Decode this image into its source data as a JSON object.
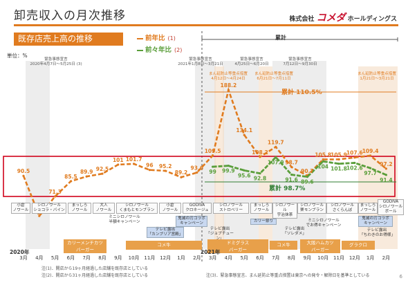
{
  "header": {
    "title": "卸売収入の月次推移",
    "company_prefix": "株式会社",
    "company_mark": "コメダ",
    "company_suffix": "ホールディングス"
  },
  "subtitle": "既存店売上高の推移",
  "legend": {
    "items": [
      {
        "label": "前年比",
        "footnote": "(1)",
        "color": "#e07b1f"
      },
      {
        "label": "前々年比",
        "footnote": "(2)",
        "color": "#5a9e3a"
      }
    ]
  },
  "unit": "単位：%",
  "annotations": {
    "emergency1_title": "緊急事態宣言",
    "emergency1_dates": "2020年4月7日～5月25日",
    "emergency1_note": "(3)",
    "emergency2_title": "緊急事態宣言",
    "emergency2_dates": "2021年1月8日～3月21日",
    "emergency3_title": "緊急事態宣言",
    "emergency3_dates": "4月25日～6月20日",
    "emergency4_title": "緊急事態宣言",
    "emergency4_dates": "7月12日～9月30日",
    "manbo1_title": "まん延防止等重点措置",
    "manbo1_dates": "4月12日～4月24日",
    "manbo2_title": "まん延防止等重点措置",
    "manbo2_dates": "6月21日～7月11日",
    "manbo3_title": "まん延防止等重点措置",
    "manbo3_dates": "1月21日～3月21日",
    "ruikei_label": "累計",
    "ruikei_yoy": "累計 110.5%",
    "ruikei_2y": "累計 98.7%"
  },
  "campaign_row1": [
    "小倉\nノワール",
    "シロノワール\nショコラ・バイン",
    "まっしろ\nノワール",
    "大人\nノワール",
    "シロノワール\nくまもとモンブラン",
    "小倉\nノワール",
    "GODIVA\nクロネージュ",
    "シロノワール\nストロベリー",
    "まっしろ\nノワール",
    "シロノワール\n宇治抹茶",
    "シロノワール\n栗モンブラン",
    "シロノワール\nさくらんぼ",
    "まっしろ\nノワール",
    "GODIVA\nシロノワール\nボール"
  ],
  "campaign_row2": [
    "ミニシロノワール\n半額キャンペーン",
    "テレビ露出\n「カンブリア宮殿」",
    "鬼滅の刃コラボ\nキャンペーン",
    "テレビ露出\n「ジョブチューン」",
    "カリー祭り",
    "ミニシロノワール\nでお得キャンペーン",
    "テレビ露出\n「ソレダメ」",
    "鬼滅の刃コラボ\nキャンペーン",
    "テレビ露出\n「ちわきのお得様」"
  ],
  "orange_bars": [
    "カリーメンチカツ\nバーガー",
    "コメ牛",
    "ドミグラス\nバーガー",
    "コメ牛",
    "大阪ハムカツ\nバーガー",
    "グラクロ"
  ],
  "axis": {
    "year_2020": "2020年",
    "year_2021": "2021年",
    "months": [
      "3月",
      "4月",
      "5月",
      "6月",
      "7月",
      "8月",
      "9月",
      "10月",
      "11月",
      "12月",
      "1月",
      "2月",
      "3月",
      "4月",
      "5月",
      "6月",
      "7月",
      "8月",
      "9月",
      "10月",
      "11月",
      "12月",
      "1月",
      "2月"
    ]
  },
  "footnotes": {
    "n1": "注(1)．開店から19ヶ月経過した店舗を既存店としている",
    "n2": "注(2)．開店から31ヶ月経過した店舗を既存店としている",
    "n3": "注(3)．緊急事態宣言、まん延防止等重点措置は東京への発令・解除日を基準としている"
  },
  "page_number": "6",
  "chart_data": {
    "type": "line",
    "title": "既存店売上高の推移",
    "ylabel": "単位：%",
    "categories": [
      "2020年3月",
      "4月",
      "5月",
      "6月",
      "7月",
      "8月",
      "9月",
      "10月",
      "11月",
      "12月",
      "2021年1月",
      "2月",
      "3月",
      "4月",
      "5月",
      "6月",
      "7月",
      "8月",
      "9月",
      "10月",
      "11月",
      "12月",
      "1月",
      "2月"
    ],
    "series": [
      {
        "name": "前年比",
        "color": "#e07b1f",
        "values": [
          90.5,
          53.1,
          71.3,
          85.5,
          89.9,
          92.5,
          101.0,
          101.7,
          96.0,
          95.2,
          89.2,
          93.6,
          109.5,
          188.2,
          134.1,
          108.2,
          119.7,
          98.7,
          90.7,
          105.8,
          105.9,
          107.6,
          109.4,
          97.2
        ]
      },
      {
        "name": "前々年比",
        "color": "#5a9e3a",
        "values": [
          null,
          null,
          null,
          null,
          null,
          null,
          null,
          null,
          null,
          null,
          null,
          null,
          99.0,
          99.9,
          95.6,
          92.8,
          107.9,
          91.6,
          89.6,
          104.0,
          101.8,
          102.6,
          97.7,
          91.4
        ]
      }
    ],
    "grid": false,
    "legend_position": "top-left"
  }
}
